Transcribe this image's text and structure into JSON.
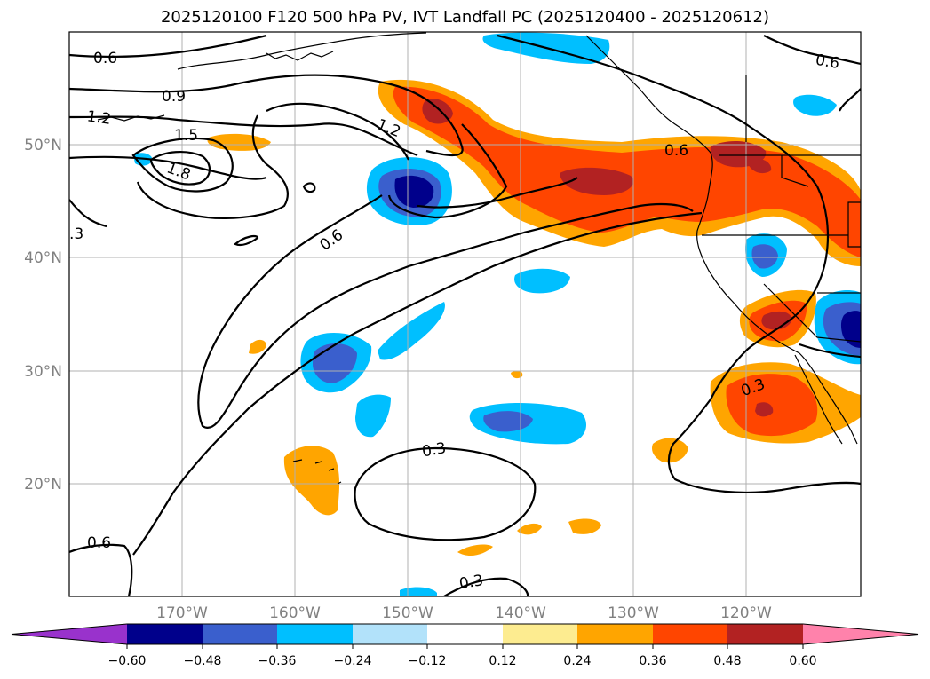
{
  "title": "2025120100 F120 500 hPa PV, IVT Landfall PC (2025120400 - 2025120612)",
  "axes": {
    "lon_ticks": [
      "170°W",
      "160°W",
      "150°W",
      "140°W",
      "130°W",
      "120°W"
    ],
    "lat_ticks": [
      "50°N",
      "40°N",
      "30°N",
      "20°N"
    ]
  },
  "contour_labels": [
    "0.6",
    "0.9",
    "1.2",
    "1.5",
    "1.8",
    ".3",
    "1.2",
    "0.6",
    "0.6",
    "0.6",
    "0.3",
    "0.3",
    "0.3",
    "0.6"
  ],
  "colorbar": {
    "ticks": [
      "−0.60",
      "−0.48",
      "−0.36",
      "−0.24",
      "−0.12",
      "0.12",
      "0.24",
      "0.36",
      "0.48",
      "0.60"
    ],
    "colors": {
      "under": "#9932cc",
      "navy": "#00008b",
      "royal": "#3a5fcd",
      "sky": "#00bfff",
      "light": "#b2e2fa",
      "white": "#ffffff",
      "yellow": "#fdec90",
      "orange": "#ffa500",
      "redorange": "#ff4500",
      "firebrick": "#b22222",
      "over": "#ff82ab"
    }
  }
}
